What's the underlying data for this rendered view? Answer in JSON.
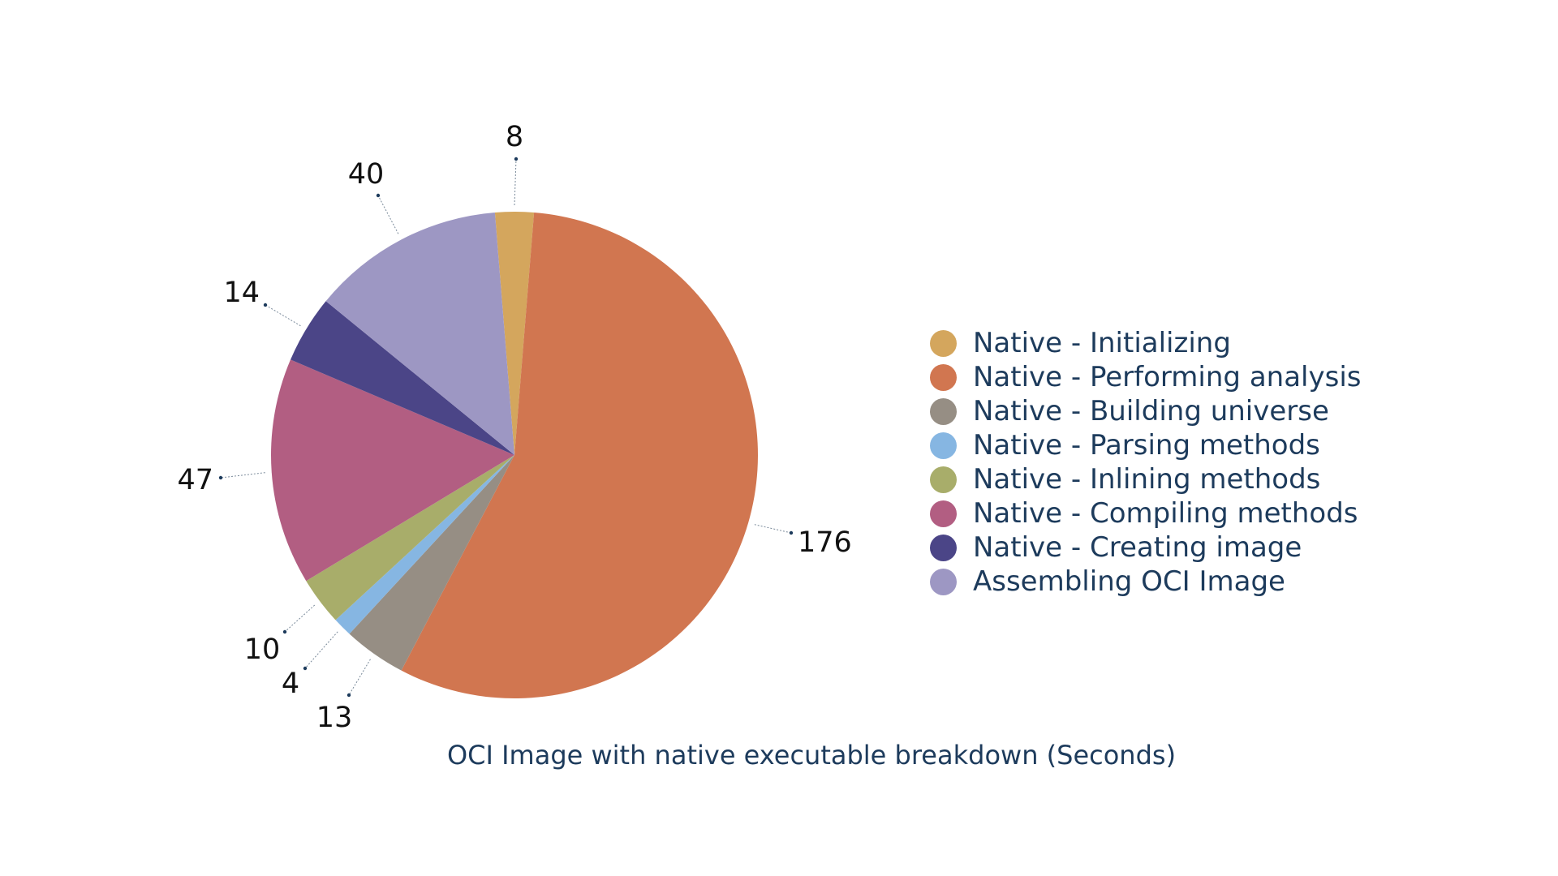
{
  "chart_data": {
    "type": "pie",
    "title": "OCI Image with native executable breakdown (Seconds)",
    "legend_position": "right",
    "slices": [
      {
        "label": "Native - Initializing",
        "value": 8,
        "color": "#d4a65d"
      },
      {
        "label": "Native - Performing analysis",
        "value": 176,
        "color": "#d17650"
      },
      {
        "label": "Native - Building universe",
        "value": 13,
        "color": "#968e84"
      },
      {
        "label": "Native - Parsing methods",
        "value": 4,
        "color": "#86b6e2"
      },
      {
        "label": "Native - Inlining methods",
        "value": 10,
        "color": "#a8ad6a"
      },
      {
        "label": "Native - Compiling methods",
        "value": 47,
        "color": "#b25e82"
      },
      {
        "label": "Native - Creating image",
        "value": 14,
        "color": "#4b4587"
      },
      {
        "label": "Assembling OCI Image",
        "value": 40,
        "color": "#9d97c3"
      }
    ]
  }
}
